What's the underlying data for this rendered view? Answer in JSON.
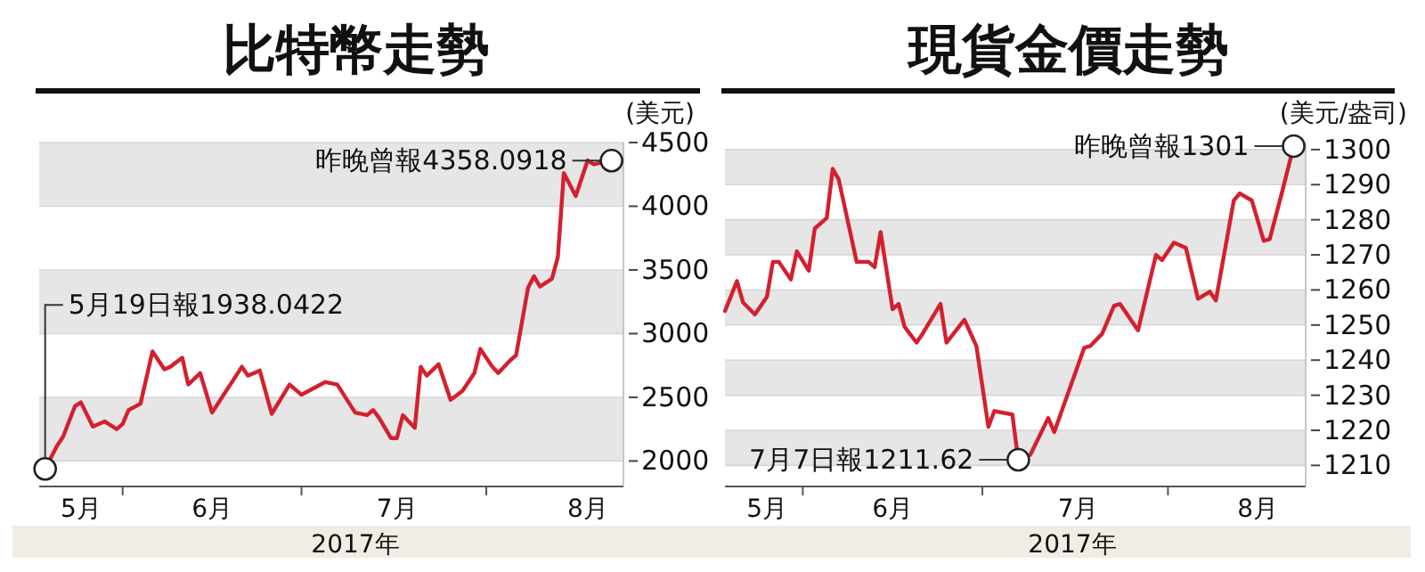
{
  "chart_data": [
    {
      "type": "line",
      "title": "比特幣走勢",
      "ylabel": "(美元)",
      "xlabel": "2017年",
      "grid": "y",
      "x": [
        "--05-19",
        "--05-21",
        "--05-22",
        "--05-24",
        "--05-25",
        "--05-27",
        "--05-29",
        "--05-31",
        "--06-01",
        "--06-02",
        "--06-04",
        "--06-06",
        "--06-08",
        "--06-09",
        "--06-11",
        "--06-12",
        "--06-14",
        "--06-16",
        "--06-21",
        "--06-22",
        "--06-24",
        "--06-26",
        "--06-29",
        "--07-01",
        "--07-05",
        "--07-07",
        "--07-10",
        "--07-12",
        "--07-13",
        "--07-14",
        "--07-16",
        "--07-17",
        "--07-18",
        "--07-20",
        "--07-21",
        "--07-22",
        "--07-24",
        "--07-26",
        "--07-28",
        "--07-30",
        "--07-31",
        "--08-02",
        "--08-03",
        "--08-05",
        "--08-06",
        "--08-08",
        "--08-09",
        "--08-10",
        "--08-12",
        "--08-13",
        "--08-14",
        "--08-16",
        "--08-18",
        "--08-19",
        "--08-22"
      ],
      "series": [
        {
          "color": "#d4202e",
          "values": [
            1938,
            2120,
            2190,
            2430,
            2460,
            2270,
            2310,
            2250,
            2290,
            2400,
            2450,
            2860,
            2720,
            2740,
            2810,
            2600,
            2690,
            2380,
            2740,
            2670,
            2710,
            2370,
            2600,
            2520,
            2620,
            2600,
            2380,
            2360,
            2400,
            2340,
            2180,
            2180,
            2360,
            2260,
            2740,
            2670,
            2760,
            2480,
            2550,
            2690,
            2880,
            2740,
            2690,
            2790,
            2830,
            3360,
            3450,
            3370,
            3430,
            3600,
            4260,
            4080,
            4360,
            4330,
            4358
          ]
        }
      ],
      "xlim": [
        "--05-18",
        "--08-24"
      ],
      "xticks": [
        {
          "value": "--05-25",
          "label": "5月"
        },
        {
          "value": "--06-01",
          "label": null
        },
        {
          "value": "--06-16",
          "label": "6月"
        },
        {
          "value": "--07-01",
          "label": null
        },
        {
          "value": "--07-17",
          "label": "7月"
        },
        {
          "value": "--08-01",
          "label": null
        },
        {
          "value": "--08-18",
          "label": "8月"
        }
      ],
      "ylim": [
        1800,
        4500
      ],
      "yticks": [
        2000,
        2500,
        3000,
        3500,
        4000,
        4500
      ],
      "annotations": [
        {
          "text": "5月19日報1938.0422",
          "x": "--05-19",
          "y": 1938
        },
        {
          "text": "昨晚曾報4358.0918",
          "x": "--08-22",
          "y": 4358
        }
      ]
    },
    {
      "type": "line",
      "title": "現貨金價走勢",
      "ylabel": "(美元/盎司)",
      "xlabel": "2017年",
      "grid": "y",
      "x": [
        "--05-19",
        "--05-21",
        "--05-22",
        "--05-24",
        "--05-26",
        "--05-27",
        "--05-28",
        "--05-30",
        "--05-31",
        "--06-02",
        "--06-03",
        "--06-05",
        "--06-06",
        "--06-07",
        "--06-10",
        "--06-12",
        "--06-13",
        "--06-14",
        "--06-16",
        "--06-17",
        "--06-18",
        "--06-20",
        "--06-21",
        "--06-24",
        "--06-25",
        "--06-28",
        "--06-30",
        "--07-02",
        "--07-03",
        "--07-06",
        "--07-07",
        "--07-09",
        "--07-12",
        "--07-13",
        "--07-18",
        "--07-19",
        "--07-21",
        "--07-23",
        "--07-24",
        "--07-27",
        "--07-30",
        "--07-31",
        "--08-02",
        "--08-04",
        "--08-06",
        "--08-08",
        "--08-09",
        "--08-12",
        "--08-13",
        "--08-15",
        "--08-17",
        "--08-18",
        "--08-20",
        "--08-22"
      ],
      "series": [
        {
          "color": "#d4202e",
          "values": [
            1254,
            1262.5,
            1256.5,
            1253,
            1258,
            1268,
            1268,
            1263,
            1271,
            1265.5,
            1277.5,
            1280.5,
            1294.5,
            1291.5,
            1268,
            1268,
            1266.5,
            1276.5,
            1254.5,
            1256,
            1249.5,
            1245,
            1247.5,
            1256,
            1245,
            1251.5,
            1244,
            1221,
            1225.5,
            1224.5,
            1211.5,
            1213,
            1223.5,
            1219.5,
            1243.5,
            1244,
            1247.5,
            1255.5,
            1256,
            1248.5,
            1270,
            1268.5,
            1273.5,
            1272,
            1257.5,
            1259.5,
            1257,
            1285.5,
            1287.5,
            1285.5,
            1274,
            1274.5,
            1287.5,
            1301
          ]
        }
      ],
      "xlim": [
        "--05-19",
        "--08-24"
      ],
      "xticks": [
        {
          "value": "--05-26",
          "label": "5月"
        },
        {
          "value": "--06-01",
          "label": null
        },
        {
          "value": "--06-16",
          "label": "6月"
        },
        {
          "value": "--07-01",
          "label": null
        },
        {
          "value": "--07-17",
          "label": "7月"
        },
        {
          "value": "--08-01",
          "label": null
        },
        {
          "value": "--08-16",
          "label": "8月"
        }
      ],
      "ylim": [
        1204,
        1302
      ],
      "yticks": [
        1210,
        1220,
        1230,
        1240,
        1250,
        1260,
        1270,
        1280,
        1290,
        1300
      ],
      "annotations": [
        {
          "text": "昨晚曾報1301",
          "x": "--08-22",
          "y": 1301
        },
        {
          "text": "7月7日報1211.62",
          "x": "--07-07",
          "y": 1211.62
        }
      ]
    }
  ]
}
